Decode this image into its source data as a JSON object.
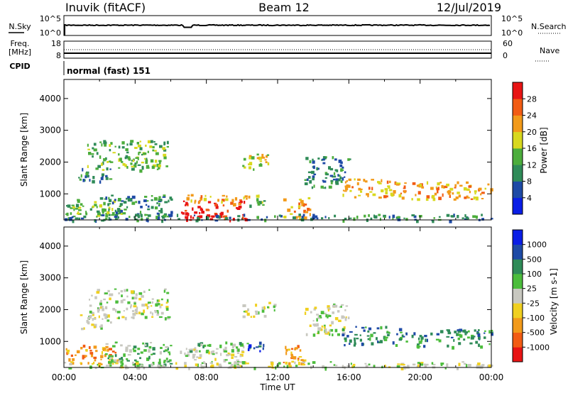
{
  "header": {
    "station": "Inuvik (fitACF)",
    "beam": "Beam 12",
    "date": "12/Jul/2019"
  },
  "top_panels": {
    "nsky_label": "N.Sky",
    "nsearch_label": "N.Search",
    "nsky_ticks": [
      "10^5",
      "10^0"
    ],
    "nsearch_ticks": [
      "10^5",
      "10^0"
    ],
    "freq_label_1": "Freq.",
    "freq_label_2": "[MHz]",
    "freq_ticks": [
      "18",
      "8"
    ],
    "nave_label": "Nave",
    "nave_ticks": [
      "60",
      "0"
    ],
    "cpid_label": "CPID",
    "cpid_value": "normal (fast) 151"
  },
  "colors": {
    "power": [
      "#0a1ee6",
      "#1e4aa6",
      "#2f8b58",
      "#4cad3c",
      "#d8d81e",
      "#f29a1a",
      "#f25c14",
      "#e81414"
    ],
    "velocity": [
      "#e81414",
      "#f25c14",
      "#f29a1a",
      "#f0d020",
      "#c8c8c0",
      "#4cbd3c",
      "#2f8b58",
      "#1e4aa6",
      "#0a1ee6"
    ]
  },
  "chart_data": [
    {
      "type": "heatmap",
      "panel": "power",
      "ylabel": "Slant Range [km]",
      "yticks": [
        "1000",
        "2000",
        "3000",
        "4000"
      ],
      "ylim": [
        180,
        4600
      ],
      "xticks": [
        "00:00",
        "04:00",
        "08:00",
        "12:00",
        "16:00",
        "20:00",
        "00:00"
      ],
      "colorbar_label": "Power [dB]",
      "colorbar_ticks": [
        "4",
        "8",
        "12",
        "16",
        "20",
        "24",
        "28"
      ],
      "regions": [
        {
          "t0": 1.3,
          "t1": 5.8,
          "r0": 1750,
          "r1": 2700,
          "level": 3
        },
        {
          "t0": 0.8,
          "t1": 2.6,
          "r0": 1400,
          "r1": 1900,
          "level": 2
        },
        {
          "t0": 0.0,
          "t1": 3.4,
          "r0": 300,
          "r1": 900,
          "level": 3
        },
        {
          "t0": 2.2,
          "t1": 6.0,
          "r0": 250,
          "r1": 1000,
          "level": 2
        },
        {
          "t0": 6.5,
          "t1": 10.2,
          "r0": 180,
          "r1": 800,
          "level": 7
        },
        {
          "t0": 6.8,
          "t1": 10.4,
          "r0": 700,
          "r1": 1000,
          "level": 5
        },
        {
          "t0": 10.0,
          "t1": 11.8,
          "r0": 1800,
          "r1": 2300,
          "level": 4
        },
        {
          "t0": 10.3,
          "t1": 11.2,
          "r0": 650,
          "r1": 1050,
          "level": 3
        },
        {
          "t0": 12.3,
          "t1": 13.8,
          "r0": 250,
          "r1": 900,
          "level": 5
        },
        {
          "t0": 13.5,
          "t1": 16.0,
          "r0": 1200,
          "r1": 2200,
          "level": 2
        },
        {
          "t0": 15.5,
          "t1": 19.2,
          "r0": 900,
          "r1": 1500,
          "level": 5
        },
        {
          "t0": 19.5,
          "t1": 24.0,
          "r0": 850,
          "r1": 1400,
          "level": 5
        },
        {
          "t0": 0.0,
          "t1": 24.0,
          "r0": 180,
          "r1": 380,
          "level": 2
        }
      ]
    },
    {
      "type": "heatmap",
      "panel": "velocity",
      "ylabel": "Slant Range [km]",
      "yticks": [
        "1000",
        "2000",
        "3000",
        "4000"
      ],
      "ylim": [
        180,
        4600
      ],
      "xticks": [
        "00:00",
        "04:00",
        "08:00",
        "12:00",
        "16:00",
        "20:00",
        "00:00"
      ],
      "xlabel": "Time UT",
      "colorbar_label": "Velocity [m s-1]",
      "colorbar_ticks": [
        "-1000",
        "-500",
        "-100",
        "-25",
        "25",
        "100",
        "500",
        "1000"
      ],
      "regions": [
        {
          "t0": 1.3,
          "t1": 5.8,
          "r0": 1750,
          "r1": 2700,
          "level": 4
        },
        {
          "t0": 0.8,
          "t1": 2.6,
          "r0": 1400,
          "r1": 1900,
          "level": 4
        },
        {
          "t0": 0.0,
          "t1": 3.0,
          "r0": 300,
          "r1": 900,
          "level": 2
        },
        {
          "t0": 2.2,
          "t1": 6.0,
          "r0": 250,
          "r1": 1000,
          "level": 5
        },
        {
          "t0": 6.5,
          "t1": 10.2,
          "r0": 180,
          "r1": 800,
          "level": 4
        },
        {
          "t0": 6.8,
          "t1": 10.4,
          "r0": 700,
          "r1": 1000,
          "level": 5
        },
        {
          "t0": 10.0,
          "t1": 11.8,
          "r0": 1800,
          "r1": 2300,
          "level": 4
        },
        {
          "t0": 10.3,
          "t1": 11.2,
          "r0": 650,
          "r1": 1050,
          "level": 7
        },
        {
          "t0": 12.3,
          "t1": 13.8,
          "r0": 250,
          "r1": 900,
          "level": 2
        },
        {
          "t0": 13.5,
          "t1": 16.0,
          "r0": 1200,
          "r1": 2200,
          "level": 4
        },
        {
          "t0": 15.5,
          "t1": 19.2,
          "r0": 900,
          "r1": 1500,
          "level": 6
        },
        {
          "t0": 19.5,
          "t1": 24.0,
          "r0": 850,
          "r1": 1400,
          "level": 6
        },
        {
          "t0": 0.0,
          "t1": 24.0,
          "r0": 180,
          "r1": 380,
          "level": 4
        }
      ]
    }
  ]
}
